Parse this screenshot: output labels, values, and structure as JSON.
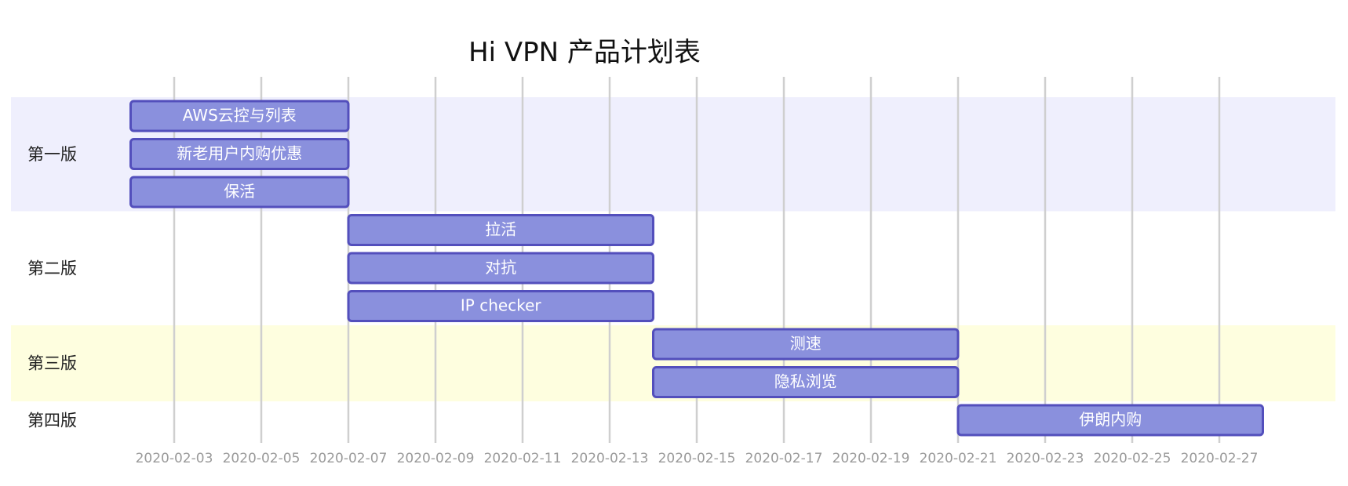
{
  "chart_data": {
    "type": "gantt",
    "title": "Hi VPN 产品计划表",
    "x_ticks": [
      "2020-02-03",
      "2020-02-05",
      "2020-02-07",
      "2020-02-09",
      "2020-02-11",
      "2020-02-13",
      "2020-02-15",
      "2020-02-17",
      "2020-02-19",
      "2020-02-21",
      "2020-02-23",
      "2020-02-25",
      "2020-02-27"
    ],
    "sections": [
      {
        "name": "第一版",
        "color": "#efeffd",
        "tasks": [
          {
            "label": "AWS云控与列表",
            "start": "2020-02-02",
            "end": "2020-02-07"
          },
          {
            "label": "新老用户内购优惠",
            "start": "2020-02-02",
            "end": "2020-02-07"
          },
          {
            "label": "保活",
            "start": "2020-02-02",
            "end": "2020-02-07"
          }
        ]
      },
      {
        "name": "第二版",
        "color": "#ffffff",
        "tasks": [
          {
            "label": "拉活",
            "start": "2020-02-07",
            "end": "2020-02-14"
          },
          {
            "label": "对抗",
            "start": "2020-02-07",
            "end": "2020-02-14"
          },
          {
            "label": "IP checker",
            "start": "2020-02-07",
            "end": "2020-02-14"
          }
        ]
      },
      {
        "name": "第三版",
        "color": "#fefedf",
        "tasks": [
          {
            "label": "测速",
            "start": "2020-02-14",
            "end": "2020-02-21"
          },
          {
            "label": "隐私浏览",
            "start": "2020-02-14",
            "end": "2020-02-21"
          }
        ]
      },
      {
        "name": "第四版",
        "color": "#ffffff",
        "tasks": [
          {
            "label": "伊朗内购",
            "start": "2020-02-21",
            "end": "2020-02-28"
          }
        ]
      }
    ],
    "bar_fill": "#8a90dd",
    "bar_stroke": "#534fbc",
    "grid_color": "#cfcfcf"
  }
}
